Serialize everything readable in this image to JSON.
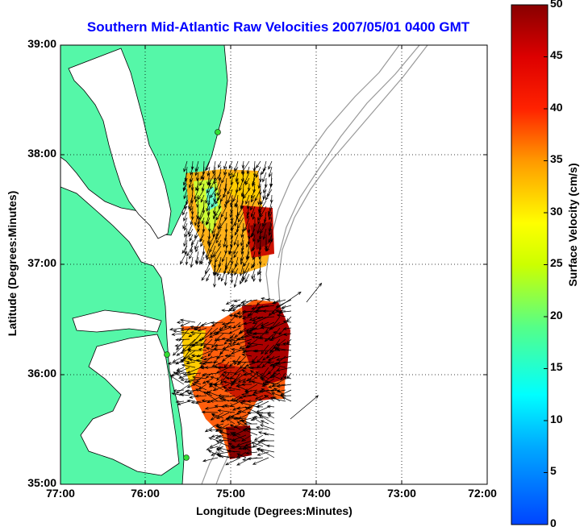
{
  "title": "Southern Mid-Atlantic Raw Velocities 2007/05/01 0400 GMT",
  "x_label": "Longitude (Degrees:Minutes)",
  "y_label": "Latitude (Degrees:Minutes)",
  "colorbar_label": "Surface Velocity (cm/s)",
  "lat_ticks": [
    "39:00",
    "38:00",
    "37:00",
    "36:00",
    "35:00"
  ],
  "lon_ticks": [
    "77:00",
    "76:00",
    "75:00",
    "74:00",
    "73:00",
    "72:00"
  ],
  "colorbar_ticks": [
    "50",
    "45",
    "40",
    "35",
    "30",
    "25",
    "20",
    "15",
    "10",
    "5",
    "0"
  ],
  "colorbar_range": [
    0,
    50
  ],
  "colors": {
    "land": "#55f7a8",
    "water": "#ffffff",
    "title": "#0000ff",
    "site_marker": "#33dd33",
    "bathymetry": "#999999"
  }
}
